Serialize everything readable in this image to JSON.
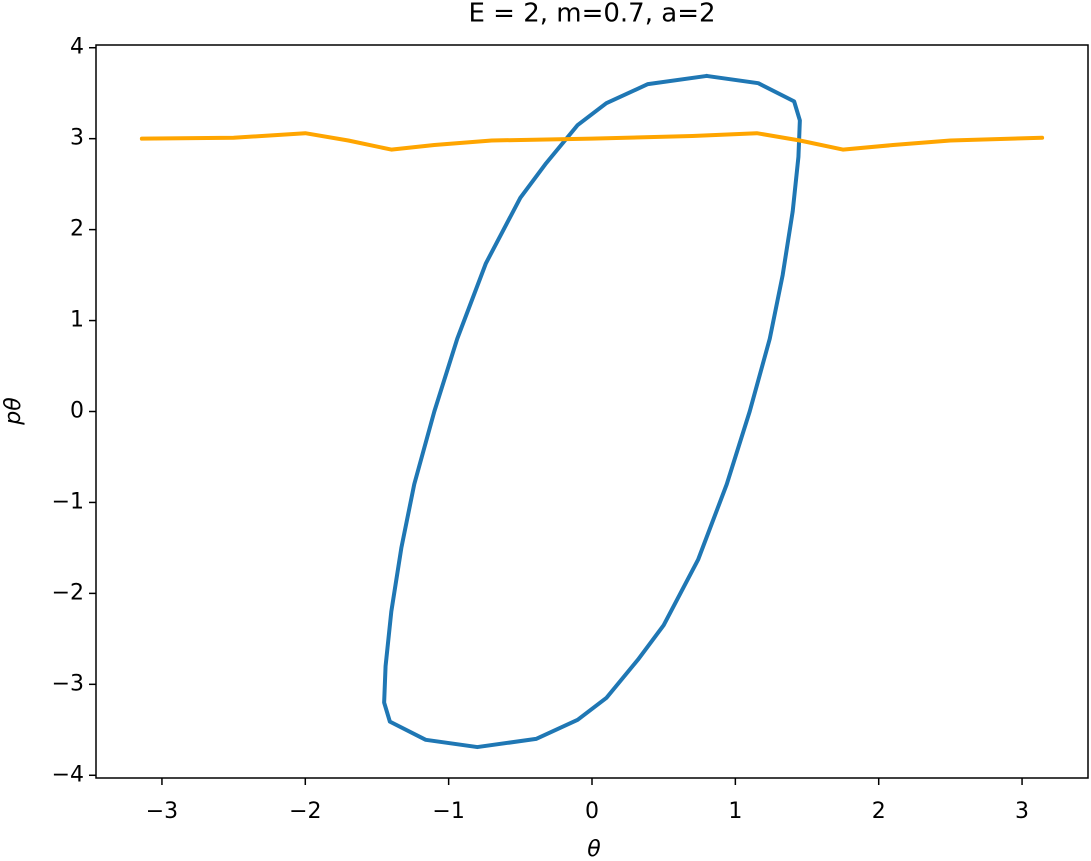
{
  "chart_data": {
    "type": "line",
    "title": "E = 2, m=0.7, a=2",
    "x_label": "θ",
    "y_label": "pθ",
    "xlim": [
      -3.46,
      3.46
    ],
    "ylim": [
      -4.03,
      4.03
    ],
    "xticks": [
      {
        "value": -3,
        "label": "−3"
      },
      {
        "value": -2,
        "label": "−2"
      },
      {
        "value": -1,
        "label": "−1"
      },
      0,
      1,
      2,
      3
    ],
    "yticks": [
      {
        "value": -4,
        "label": "−4"
      },
      {
        "value": -3,
        "label": "−3"
      },
      {
        "value": -2,
        "label": "−2"
      },
      {
        "value": -1,
        "label": "−1"
      },
      0,
      1,
      2,
      3,
      4
    ],
    "series": [
      {
        "color": "#1f77b4",
        "x": [
          0.8,
          1.16,
          1.41,
          1.45,
          1.44,
          1.4,
          1.33,
          1.24,
          1.1,
          0.94,
          0.74,
          0.5,
          0.32,
          0.1,
          -0.1,
          -0.39,
          -0.8,
          -1.16,
          -1.41,
          -1.45,
          -1.44,
          -1.4,
          -1.33,
          -1.24,
          -1.1,
          -0.94,
          -0.74,
          -0.5,
          -0.32,
          -0.1,
          0.1,
          0.39,
          0.8
        ],
        "values": [
          3.69,
          3.61,
          3.41,
          3.2,
          2.8,
          2.2,
          1.5,
          0.8,
          0,
          -0.8,
          -1.63,
          -2.35,
          -2.73,
          -3.15,
          -3.39,
          -3.6,
          -3.69,
          -3.61,
          -3.41,
          -3.2,
          -2.8,
          -2.2,
          -1.5,
          -0.8,
          0,
          0.8,
          1.63,
          2.35,
          2.73,
          3.15,
          3.39,
          3.6,
          3.69
        ]
      },
      {
        "color": "#ffa500",
        "x": [
          -3.14,
          -2.5,
          -2.0,
          -1.7,
          -1.4,
          -1.1,
          -0.7,
          0,
          0.7,
          1.15,
          1.45,
          1.75,
          2.1,
          2.5,
          3.14
        ],
        "values": [
          3.0,
          3.01,
          3.06,
          2.98,
          2.88,
          2.93,
          2.98,
          3.0,
          3.03,
          3.06,
          2.98,
          2.88,
          2.93,
          2.98,
          3.01
        ]
      }
    ]
  }
}
